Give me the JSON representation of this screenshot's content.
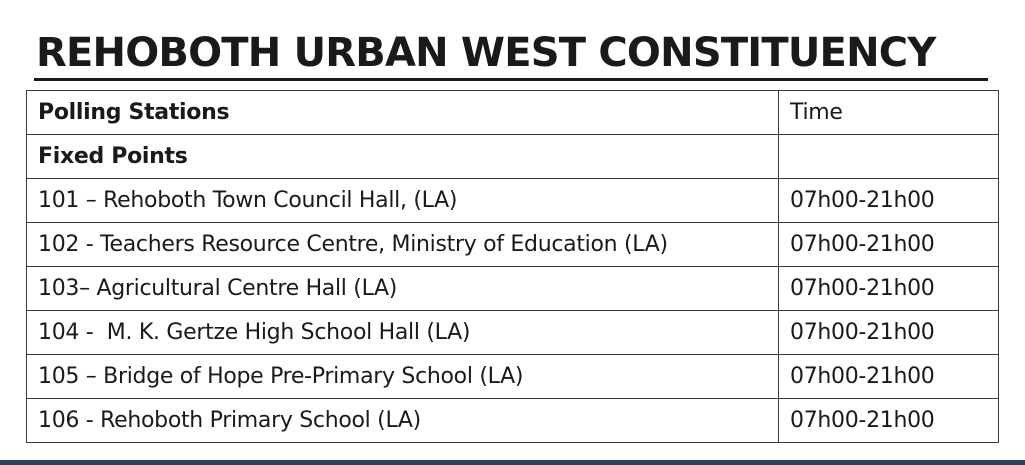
{
  "title": "REHOBOTH URBAN WEST CONSTITUENCY",
  "table": {
    "header": {
      "station": "Polling Stations",
      "time": "Time"
    },
    "section": "Fixed Points",
    "rows": [
      {
        "station": "101 – Rehoboth Town Council Hall, (LA)",
        "time": "07h00-21h00"
      },
      {
        "station": "102 - Teachers Resource Centre, Ministry of Education (LA)",
        "time": "07h00-21h00"
      },
      {
        "station": "103– Agricultural Centre Hall (LA)",
        "time": "07h00-21h00"
      },
      {
        "station": "104 -  M. K. Gertze High School Hall (LA)",
        "time": "07h00-21h00"
      },
      {
        "station": "105 – Bridge of Hope Pre-Primary School (LA)",
        "time": "07h00-21h00"
      },
      {
        "station": "106 - Rehoboth Primary School (LA)",
        "time": "07h00-21h00"
      }
    ]
  },
  "colors": {
    "text": "#1a1a1a",
    "border": "#3a3a3a",
    "bottom_bar": "#2f4058"
  }
}
